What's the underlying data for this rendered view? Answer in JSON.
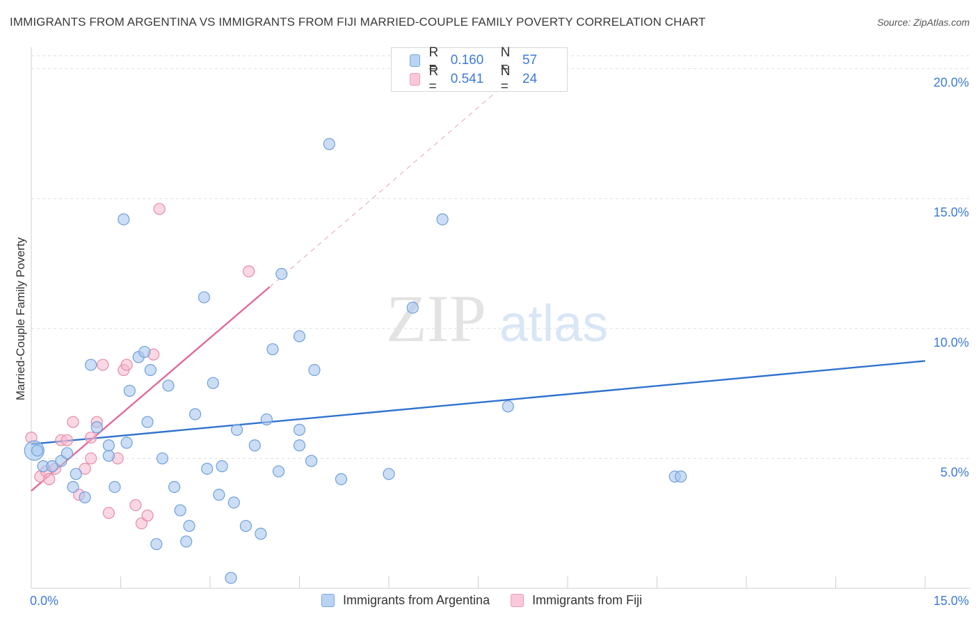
{
  "title": "IMMIGRANTS FROM ARGENTINA VS IMMIGRANTS FROM FIJI MARRIED-COUPLE FAMILY POVERTY CORRELATION CHART",
  "source": "Source: ZipAtlas.com",
  "watermark": {
    "zip": "ZIP",
    "atlas": "atlas"
  },
  "legend": {
    "rows": [
      {
        "r_label": "R =",
        "r_value": "0.160",
        "n_label": "N =",
        "n_value": "57"
      },
      {
        "r_label": "R =",
        "r_value": "0.541",
        "n_label": "N =",
        "n_value": "24"
      }
    ]
  },
  "colors": {
    "argentina_fill": "#a8c8f0",
    "argentina_stroke": "#6f9fd8",
    "argentina_line": "#2f72d0",
    "fiji_fill": "#f6b8cc",
    "fiji_stroke": "#e68aa8",
    "fiji_line": "#e0699a",
    "tick_label": "#3d7bd6",
    "grid": "#dedede"
  },
  "chart_data": {
    "type": "scatter",
    "title": "IMMIGRANTS FROM ARGENTINA VS IMMIGRANTS FROM FIJI MARRIED-COUPLE FAMILY POVERTY CORRELATION CHART",
    "xlabel": "",
    "ylabel": "Married-Couple Family Poverty",
    "xlim": [
      0,
      15
    ],
    "ylim": [
      0,
      20.5
    ],
    "x_tick_labels": [
      "0.0%",
      "15.0%"
    ],
    "y_ticks": [
      5,
      10,
      15,
      20
    ],
    "y_tick_labels": [
      "5.0%",
      "10.0%",
      "15.0%",
      "20.0%"
    ],
    "grid": "horizontal dashed",
    "legend_position": "bottom-center",
    "series": [
      {
        "name": "Immigrants from Argentina",
        "color": "#a8c8f0",
        "trend": {
          "x": [
            0,
            15
          ],
          "y": [
            5.55,
            8.75
          ]
        },
        "points": [
          {
            "x": 0.05,
            "y": 5.3,
            "big": true
          },
          {
            "x": 0.2,
            "y": 4.7
          },
          {
            "x": 0.35,
            "y": 4.7
          },
          {
            "x": 0.5,
            "y": 4.9
          },
          {
            "x": 0.6,
            "y": 5.2
          },
          {
            "x": 0.75,
            "y": 4.4
          },
          {
            "x": 0.7,
            "y": 3.9
          },
          {
            "x": 0.9,
            "y": 3.5
          },
          {
            "x": 1.0,
            "y": 8.6
          },
          {
            "x": 1.1,
            "y": 6.2
          },
          {
            "x": 1.3,
            "y": 5.1
          },
          {
            "x": 1.3,
            "y": 5.5
          },
          {
            "x": 1.4,
            "y": 3.9
          },
          {
            "x": 1.55,
            "y": 14.2
          },
          {
            "x": 1.6,
            "y": 5.6
          },
          {
            "x": 1.65,
            "y": 7.6
          },
          {
            "x": 1.8,
            "y": 8.9
          },
          {
            "x": 1.9,
            "y": 9.1
          },
          {
            "x": 1.95,
            "y": 6.4
          },
          {
            "x": 2.0,
            "y": 8.4
          },
          {
            "x": 2.1,
            "y": 1.7
          },
          {
            "x": 2.2,
            "y": 5.0
          },
          {
            "x": 2.3,
            "y": 7.8
          },
          {
            "x": 2.4,
            "y": 3.9
          },
          {
            "x": 2.5,
            "y": 3.0
          },
          {
            "x": 2.6,
            "y": 1.8
          },
          {
            "x": 2.65,
            "y": 2.4
          },
          {
            "x": 2.75,
            "y": 6.7
          },
          {
            "x": 2.9,
            "y": 11.2
          },
          {
            "x": 2.95,
            "y": 4.6
          },
          {
            "x": 3.05,
            "y": 7.9
          },
          {
            "x": 3.15,
            "y": 3.6
          },
          {
            "x": 3.2,
            "y": 4.7
          },
          {
            "x": 3.35,
            "y": 0.4
          },
          {
            "x": 3.4,
            "y": 3.3
          },
          {
            "x": 3.45,
            "y": 6.1
          },
          {
            "x": 3.6,
            "y": 2.4
          },
          {
            "x": 3.75,
            "y": 5.5
          },
          {
            "x": 3.85,
            "y": 2.1
          },
          {
            "x": 3.95,
            "y": 6.5
          },
          {
            "x": 4.05,
            "y": 9.2
          },
          {
            "x": 4.15,
            "y": 4.5
          },
          {
            "x": 4.2,
            "y": 12.1
          },
          {
            "x": 4.5,
            "y": 9.7
          },
          {
            "x": 4.5,
            "y": 5.5
          },
          {
            "x": 4.5,
            "y": 6.1
          },
          {
            "x": 4.7,
            "y": 4.9
          },
          {
            "x": 4.75,
            "y": 8.4
          },
          {
            "x": 5.0,
            "y": 17.1
          },
          {
            "x": 5.2,
            "y": 4.2
          },
          {
            "x": 6.4,
            "y": 10.8
          },
          {
            "x": 6.0,
            "y": 4.4
          },
          {
            "x": 6.9,
            "y": 14.2
          },
          {
            "x": 8.0,
            "y": 7.0
          },
          {
            "x": 10.8,
            "y": 4.3
          },
          {
            "x": 10.9,
            "y": 4.3
          },
          {
            "x": 0.1,
            "y": 5.3
          }
        ]
      },
      {
        "name": "Immigrants from Fiji",
        "color": "#f6b8cc",
        "trend": {
          "x": [
            0,
            4.0
          ],
          "y": [
            3.75,
            11.6
          ]
        },
        "trend_extension": {
          "x": [
            4.0,
            8.0
          ],
          "y": [
            11.6,
            19.5
          ]
        },
        "points": [
          {
            "x": 0.0,
            "y": 5.8
          },
          {
            "x": 0.15,
            "y": 4.3
          },
          {
            "x": 0.25,
            "y": 4.5
          },
          {
            "x": 0.3,
            "y": 4.2
          },
          {
            "x": 0.4,
            "y": 4.6
          },
          {
            "x": 0.5,
            "y": 5.7
          },
          {
            "x": 0.6,
            "y": 5.7
          },
          {
            "x": 0.7,
            "y": 6.4
          },
          {
            "x": 0.8,
            "y": 3.6
          },
          {
            "x": 0.9,
            "y": 4.6
          },
          {
            "x": 1.0,
            "y": 5.0
          },
          {
            "x": 1.0,
            "y": 5.8
          },
          {
            "x": 1.1,
            "y": 6.4
          },
          {
            "x": 1.2,
            "y": 8.6
          },
          {
            "x": 1.3,
            "y": 2.9
          },
          {
            "x": 1.45,
            "y": 5.0
          },
          {
            "x": 1.55,
            "y": 8.4
          },
          {
            "x": 1.6,
            "y": 8.6
          },
          {
            "x": 1.75,
            "y": 3.2
          },
          {
            "x": 1.85,
            "y": 2.5
          },
          {
            "x": 1.95,
            "y": 2.8
          },
          {
            "x": 2.05,
            "y": 9.0
          },
          {
            "x": 2.15,
            "y": 14.6
          },
          {
            "x": 3.65,
            "y": 12.2
          }
        ]
      }
    ]
  },
  "bottom_legend": [
    "Immigrants from Argentina",
    "Immigrants from Fiji"
  ]
}
